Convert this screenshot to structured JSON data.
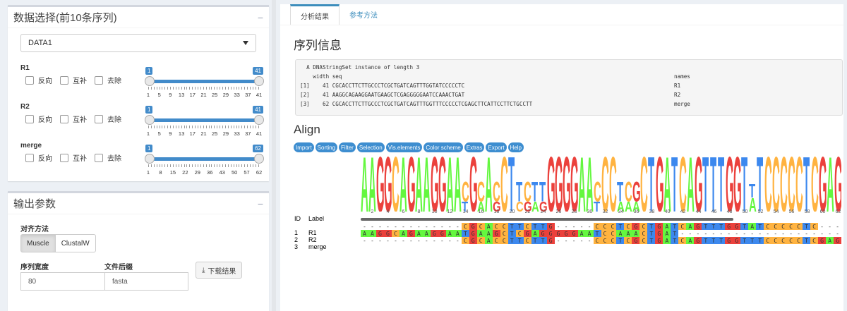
{
  "box1": {
    "title": "数据选择(前10条序列)",
    "collapse": "−",
    "select_value": "DATA1",
    "groups": [
      {
        "label": "R1",
        "opts": [
          "反向",
          "互补",
          "去除"
        ],
        "min": 1,
        "max": 41,
        "ticks": [
          "1",
          "5",
          "9",
          "13",
          "17",
          "21",
          "25",
          "29",
          "33",
          "37",
          "41"
        ]
      },
      {
        "label": "R2",
        "opts": [
          "反向",
          "互补",
          "去除"
        ],
        "min": 1,
        "max": 41,
        "ticks": [
          "1",
          "5",
          "9",
          "13",
          "17",
          "21",
          "25",
          "29",
          "33",
          "37",
          "41"
        ]
      },
      {
        "label": "merge",
        "opts": [
          "反向",
          "互补",
          "去除"
        ],
        "min": 1,
        "max": 62,
        "ticks": [
          "1",
          "8",
          "15",
          "22",
          "29",
          "36",
          "43",
          "50",
          "57",
          "62"
        ]
      }
    ]
  },
  "box2": {
    "title": "输出参数",
    "collapse": "−",
    "method_label": "对齐方法",
    "methods": [
      "Muscle",
      "ClustalW"
    ],
    "width_label": "序列宽度",
    "width_value": "80",
    "suffix_label": "文件后缀",
    "suffix_value": "fasta",
    "download": "下载结果"
  },
  "tabs": [
    "分析结果",
    "参考方法"
  ],
  "seqinfo": {
    "title": "序列信息",
    "lines": [
      "  A DNAStringSet instance of length 3",
      "    width seq",
      "[1]    41 CGCACCTTCTTGCCCTCGCTGATCAGTTTGGTATCCCCCTC",
      "[2]    41 AAGGCAGAAGGAATGAAGCTCGAGGGGGAATCCAAACTGAT",
      "[3]    62 CGCACCTTCTTGCCCTCGCTGATCAGTTTGGTTTCCCCCTCGAGCTTCATTCCTTCTGCCTT"
    ],
    "names": [
      "names",
      "R1",
      "R2",
      "merge"
    ]
  },
  "align": {
    "title": "Align",
    "buttons": [
      "Import",
      "Sorting",
      "Filter",
      "Selection",
      "Vis.elements",
      "Color scheme",
      "Extras",
      "Export",
      "Help"
    ],
    "id_header": "ID",
    "label_header": "Label",
    "rows": [
      {
        "id": "1",
        "label": "R1",
        "seq": "-------------CGCACCTTCTTG-----CCCTCGCTGATCAGTTTGGTATCCCCCTC---"
      },
      {
        "id": "2",
        "label": "R2",
        "seq": "AAGGCAGAAGGAATGAAGCTCGAGGGGGAATCCAAACTGAT---------------------"
      },
      {
        "id": "3",
        "label": "merge",
        "seq": "-------------CGCACCTTCTTG-----CCCTCGCTGATCAGTTTGGTTTCCCCCTCGAG"
      }
    ],
    "axis": [
      "2",
      "4",
      "6",
      "8",
      "10",
      "12",
      "14",
      "16",
      "18",
      "20",
      "22",
      "24",
      "26",
      "28",
      "30",
      "32",
      "34",
      "36",
      "38",
      "40",
      "42",
      "44",
      "46",
      "48",
      "50",
      "52",
      "54",
      "56",
      "58",
      "60",
      "62"
    ],
    "colors": {
      "A": "#64f73f",
      "C": "#ffb340",
      "G": "#eb413c",
      "T": "#3c88ee"
    }
  }
}
